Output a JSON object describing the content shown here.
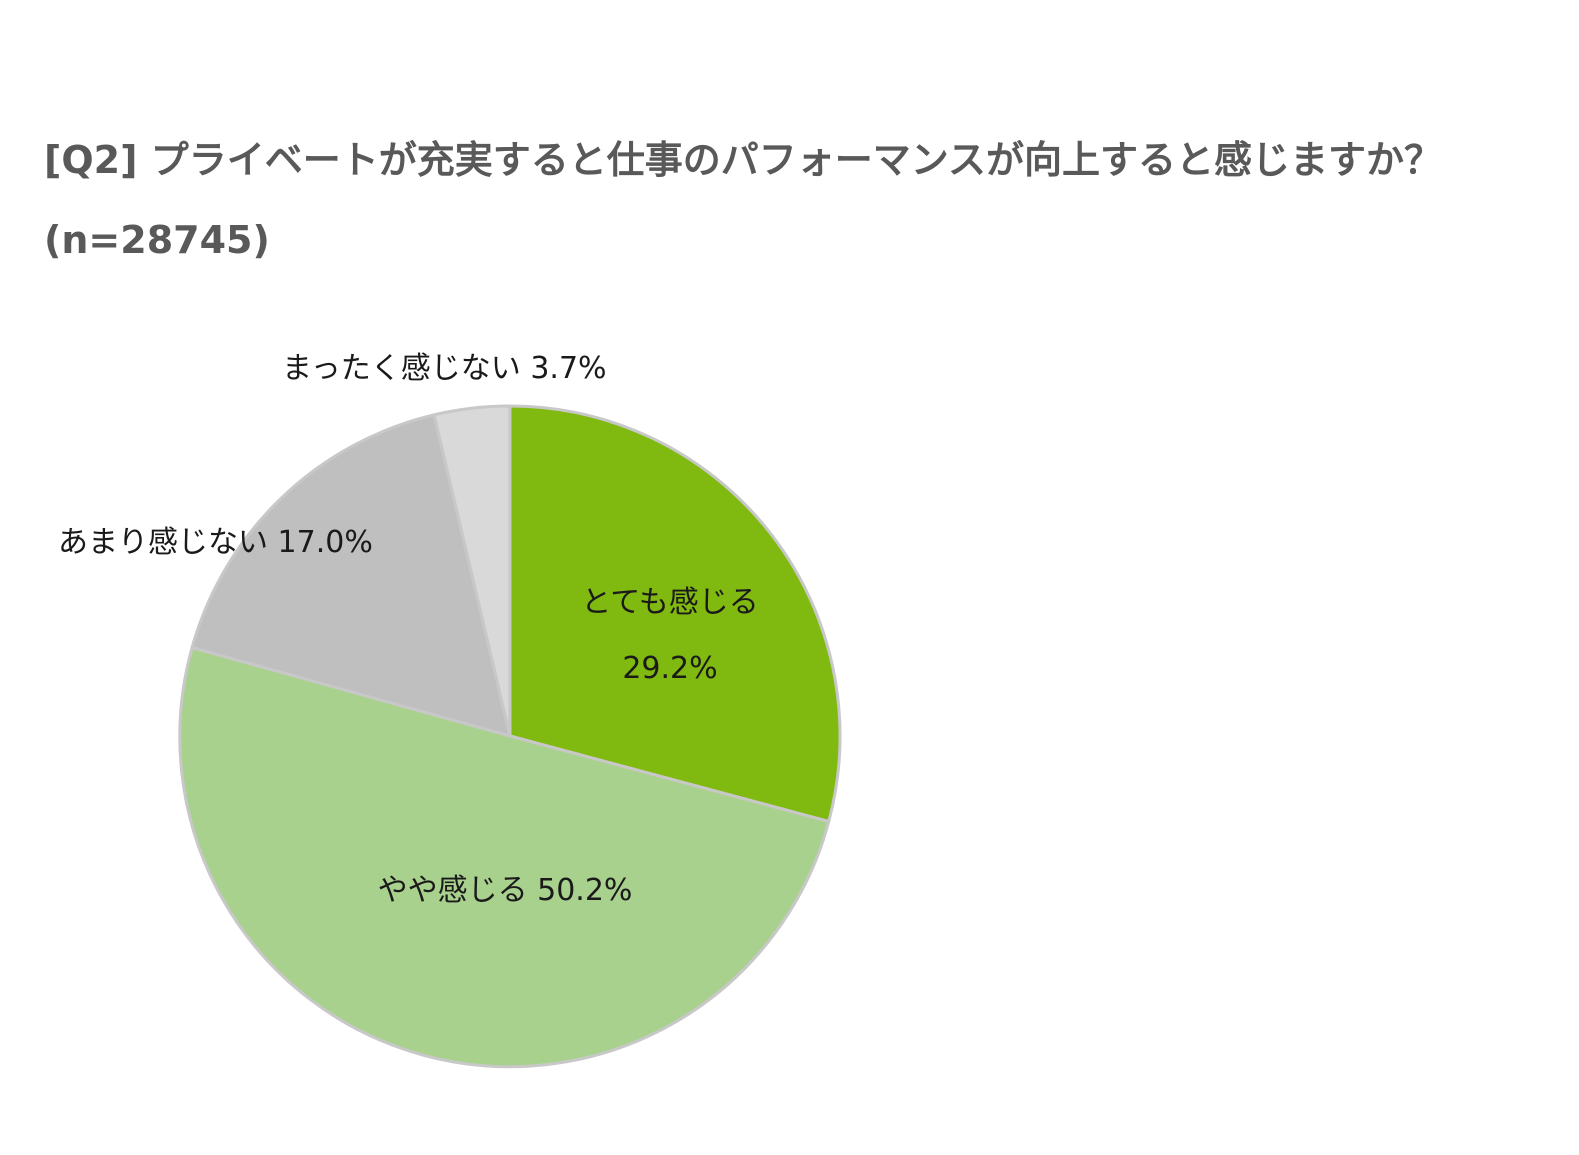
{
  "title": {
    "line1": "[Q2] プライベートが充実すると仕事のパフォーマンスが向上すると感じますか？",
    "line2": "(n=28745)"
  },
  "chart_data": {
    "type": "pie",
    "title": "[Q2] プライベートが充実すると仕事のパフォーマンスが向上すると感じますか？",
    "subtitle": "(n=28745)",
    "start_angle_deg": 0,
    "direction": "clockwise",
    "slices": [
      {
        "label": "とても感じる",
        "value": 29.2,
        "display": "29.2%",
        "color": "#80b90f",
        "label_layout": "inside-two-line"
      },
      {
        "label": "やや感じる",
        "value": 50.2,
        "display": "50.2%",
        "color": "#a9d18e",
        "label_layout": "inside-one-line"
      },
      {
        "label": "あまり感じない",
        "value": 17.0,
        "display": "17.0%",
        "color": "#bfbfbf",
        "label_layout": "outside-left"
      },
      {
        "label": "まったく感じない",
        "value": 3.7,
        "display": "3.7%",
        "color": "#d9d9d9",
        "label_layout": "outside-top"
      }
    ],
    "border_color": "#c8c8c8"
  }
}
